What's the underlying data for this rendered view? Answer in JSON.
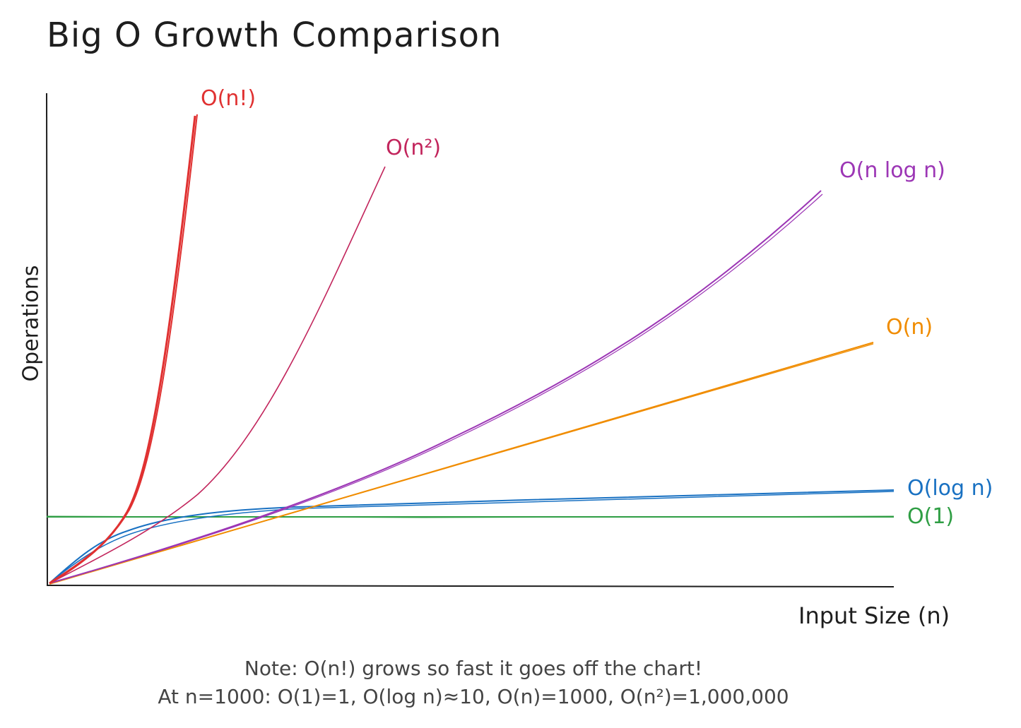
{
  "title": "Big O Growth Comparison",
  "axes": {
    "x_label": "Input Size (n)",
    "y_label": "Operations"
  },
  "curves": [
    {
      "id": "factorial",
      "label": "O(n!)",
      "color": "#e03131"
    },
    {
      "id": "quadratic",
      "label": "O(n²)",
      "color": "#c2255c"
    },
    {
      "id": "nlogn",
      "label": "O(n log n)",
      "color": "#9c36b5"
    },
    {
      "id": "linear",
      "label": "O(n)",
      "color": "#f08c00"
    },
    {
      "id": "log",
      "label": "O(log n)",
      "color": "#1971c2"
    },
    {
      "id": "constant",
      "label": "O(1)",
      "color": "#2f9e44"
    }
  ],
  "notes": {
    "line1": "Note: O(n!) grows so fast it goes off the chart!",
    "line2": "At n=1000: O(1)=1, O(log n)≈10, O(n)=1000, O(n²)=1,000,000"
  }
}
